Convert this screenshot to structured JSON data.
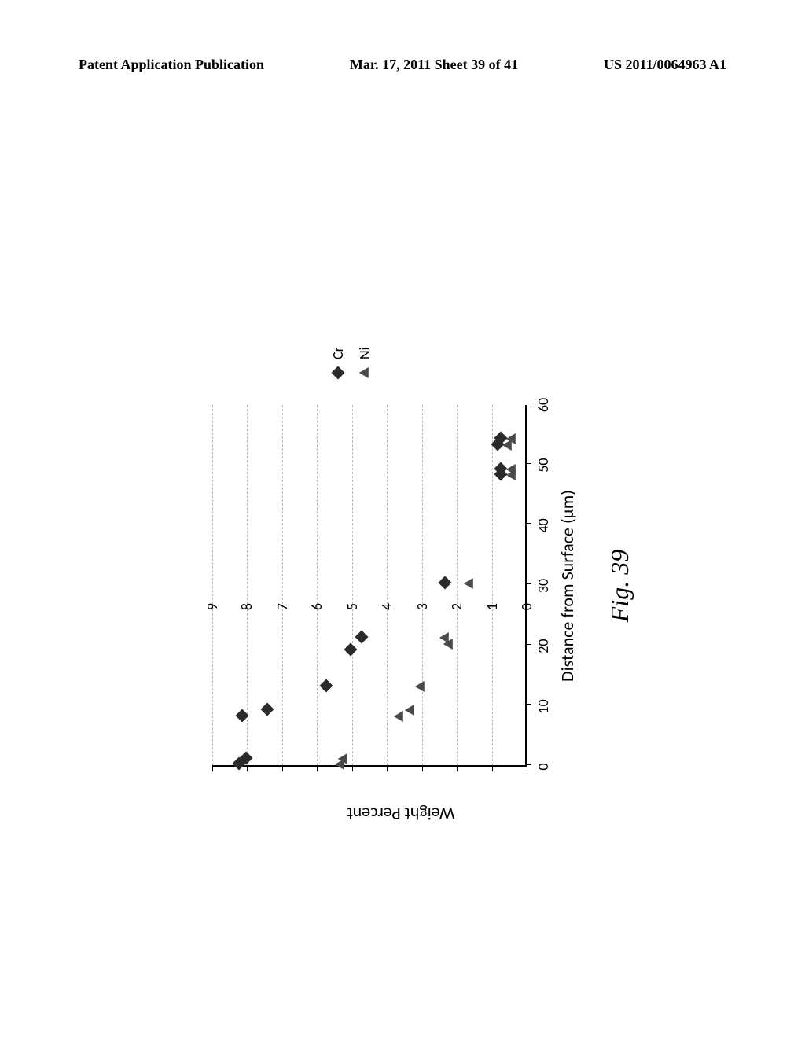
{
  "header": {
    "left": "Patent Application Publication",
    "center": "Mar. 17, 2011  Sheet 39 of 41",
    "right": "US 2011/0064963 A1"
  },
  "chart": {
    "type": "scatter",
    "xlabel": "Distance from Surface (µm)",
    "ylabel": "Weight Percent",
    "xlim": [
      0,
      60
    ],
    "ylim": [
      0,
      9
    ],
    "xtick_step": 10,
    "ytick_step": 1,
    "xtick_labels": [
      "0",
      "10",
      "20",
      "30",
      "40",
      "50",
      "60"
    ],
    "ytick_labels": [
      "0",
      "1",
      "2",
      "3",
      "4",
      "5",
      "6",
      "7",
      "8",
      "9"
    ],
    "grid_color": "#bbbbbb",
    "axis_color": "#000000",
    "background_color": "#ffffff",
    "label_fontsize": 22,
    "tick_fontsize": 18,
    "series": [
      {
        "name": "Cr",
        "marker": "diamond",
        "color": "#2a2a2a",
        "size": 12,
        "points": [
          [
            1,
            8.1
          ],
          [
            2,
            7.9
          ],
          [
            9,
            8.0
          ],
          [
            10,
            7.3
          ],
          [
            14,
            5.6
          ],
          [
            20,
            4.9
          ],
          [
            22,
            4.6
          ],
          [
            31,
            2.2
          ],
          [
            49,
            0.6
          ],
          [
            50,
            0.6
          ],
          [
            54,
            0.7
          ],
          [
            55,
            0.6
          ]
        ]
      },
      {
        "name": "Ni",
        "marker": "triangle",
        "color": "#4a4a4a",
        "size": 12,
        "points": [
          [
            1,
            5.2
          ],
          [
            2,
            5.1
          ],
          [
            9,
            3.5
          ],
          [
            10,
            3.2
          ],
          [
            14,
            2.9
          ],
          [
            21,
            2.1
          ],
          [
            22,
            2.2
          ],
          [
            31,
            1.5
          ],
          [
            49,
            0.3
          ],
          [
            50,
            0.3
          ],
          [
            54,
            0.4
          ],
          [
            55,
            0.3
          ]
        ]
      }
    ],
    "legend": {
      "position": "right",
      "items": [
        {
          "marker": "diamond",
          "label": "Cr",
          "color": "#2a2a2a"
        },
        {
          "marker": "triangle",
          "label": "Ni",
          "color": "#4a4a4a"
        }
      ]
    }
  },
  "figure_caption": "Fig. 39"
}
